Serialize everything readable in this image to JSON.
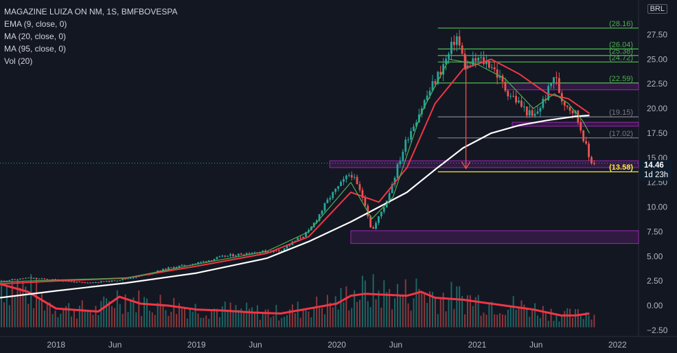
{
  "legend": {
    "title": "MAGAZINE LUIZA ON NM, 1S, BMFBOVESPA",
    "lines": [
      "EMA (9, close, 0)",
      "MA (20, close, 0)",
      "MA (95, close, 0)",
      "Vol (20)"
    ]
  },
  "currency": "BRL",
  "last_price": {
    "value": "14.46",
    "countdown": "1d 23h"
  },
  "colors": {
    "background": "#131722",
    "up": "#26a69a",
    "down": "#ef5350",
    "ema9": "#4caf50",
    "ma20": "#f23645",
    "ma95": "#ffffff",
    "vol_ma": "#f23645",
    "zone": "#9c27b0",
    "level_green": "#4caf50",
    "level_gray": "#787b86",
    "level_yellow": "#ffeb3b"
  },
  "chart_data": {
    "type": "line",
    "y_ticks": [
      "27.50",
      "25.00",
      "22.50",
      "20.00",
      "17.50",
      "15.00",
      "12.50",
      "10.00",
      "7.50",
      "5.00",
      "2.50",
      "0.00",
      "−2.50"
    ],
    "ylim": [
      -2.5,
      29.5
    ],
    "x_ticks": [
      "2018",
      "Jun",
      "2019",
      "Jun",
      "2020",
      "Jun",
      "2021",
      "Jun",
      "2022"
    ],
    "price_path": [
      [
        2017.6,
        2.5
      ],
      [
        2017.8,
        2.8
      ],
      [
        2018.0,
        2.6
      ],
      [
        2018.2,
        2.3
      ],
      [
        2018.4,
        2.5
      ],
      [
        2018.6,
        3.0
      ],
      [
        2018.8,
        3.8
      ],
      [
        2019.0,
        4.3
      ],
      [
        2019.2,
        5.0
      ],
      [
        2019.4,
        5.4
      ],
      [
        2019.6,
        5.6
      ],
      [
        2019.8,
        7.5
      ],
      [
        2019.95,
        11.0
      ],
      [
        2020.1,
        13.5
      ],
      [
        2020.2,
        10.5
      ],
      [
        2020.25,
        7.5
      ],
      [
        2020.35,
        10.5
      ],
      [
        2020.5,
        17.0
      ],
      [
        2020.65,
        21.5
      ],
      [
        2020.8,
        25.5
      ],
      [
        2020.85,
        27.5
      ],
      [
        2020.92,
        24.0
      ],
      [
        2021.0,
        25.0
      ],
      [
        2021.1,
        24.5
      ],
      [
        2021.2,
        22.0
      ],
      [
        2021.3,
        20.5
      ],
      [
        2021.4,
        19.0
      ],
      [
        2021.5,
        21.5
      ],
      [
        2021.55,
        23.5
      ],
      [
        2021.6,
        21.0
      ],
      [
        2021.7,
        19.5
      ],
      [
        2021.75,
        17.5
      ],
      [
        2021.8,
        14.8
      ],
      [
        2021.84,
        14.46
      ]
    ],
    "ema9": [
      [
        2017.6,
        2.4
      ],
      [
        2018.0,
        2.6
      ],
      [
        2018.5,
        2.8
      ],
      [
        2019.0,
        4.2
      ],
      [
        2019.5,
        5.5
      ],
      [
        2019.8,
        7.5
      ],
      [
        2020.1,
        12.5
      ],
      [
        2020.25,
        8.8
      ],
      [
        2020.4,
        11.0
      ],
      [
        2020.6,
        19.5
      ],
      [
        2020.8,
        25.0
      ],
      [
        2021.0,
        24.5
      ],
      [
        2021.2,
        23.0
      ],
      [
        2021.4,
        20.0
      ],
      [
        2021.55,
        21.5
      ],
      [
        2021.65,
        20.5
      ],
      [
        2021.75,
        18.8
      ],
      [
        2021.8,
        17.5
      ]
    ],
    "ma20": [
      [
        2017.6,
        2.2
      ],
      [
        2018.0,
        2.5
      ],
      [
        2018.5,
        2.8
      ],
      [
        2019.0,
        4.0
      ],
      [
        2019.5,
        5.3
      ],
      [
        2019.8,
        7.0
      ],
      [
        2020.1,
        11.5
      ],
      [
        2020.3,
        10.5
      ],
      [
        2020.5,
        14.0
      ],
      [
        2020.7,
        20.5
      ],
      [
        2020.9,
        24.0
      ],
      [
        2021.1,
        25.0
      ],
      [
        2021.3,
        23.5
      ],
      [
        2021.5,
        21.5
      ],
      [
        2021.65,
        21.0
      ],
      [
        2021.8,
        19.5
      ]
    ],
    "ma95": [
      [
        2017.6,
        0.8
      ],
      [
        2018.0,
        1.5
      ],
      [
        2018.5,
        2.3
      ],
      [
        2019.0,
        3.3
      ],
      [
        2019.5,
        4.8
      ],
      [
        2019.8,
        6.5
      ],
      [
        2020.1,
        8.5
      ],
      [
        2020.3,
        10.0
      ],
      [
        2020.5,
        11.5
      ],
      [
        2020.7,
        13.8
      ],
      [
        2020.9,
        16.0
      ],
      [
        2021.1,
        17.5
      ],
      [
        2021.3,
        18.3
      ],
      [
        2021.5,
        18.8
      ],
      [
        2021.7,
        19.2
      ],
      [
        2021.8,
        19.3
      ]
    ],
    "vol_ma": [
      [
        2017.6,
        2.2
      ],
      [
        2017.8,
        1.4
      ],
      [
        2018.0,
        -0.3
      ],
      [
        2018.3,
        -0.6
      ],
      [
        2018.45,
        0.9
      ],
      [
        2018.6,
        0.2
      ],
      [
        2018.8,
        0.0
      ],
      [
        2019.0,
        -0.4
      ],
      [
        2019.2,
        -0.5
      ],
      [
        2019.4,
        -0.7
      ],
      [
        2019.6,
        -0.8
      ],
      [
        2019.8,
        -0.3
      ],
      [
        2020.0,
        0.2
      ],
      [
        2020.1,
        1.0
      ],
      [
        2020.2,
        1.2
      ],
      [
        2020.35,
        1.1
      ],
      [
        2020.5,
        1.0
      ],
      [
        2020.6,
        1.4
      ],
      [
        2020.7,
        0.8
      ],
      [
        2020.9,
        0.6
      ],
      [
        2021.0,
        0.4
      ],
      [
        2021.2,
        0.0
      ],
      [
        2021.4,
        -0.4
      ],
      [
        2021.6,
        -1.0
      ],
      [
        2021.7,
        -1.0
      ],
      [
        2021.8,
        -0.8
      ]
    ],
    "levels": [
      {
        "value": 28.16,
        "label": "(28.16)",
        "color": "green"
      },
      {
        "value": 26.04,
        "label": "(26.04)",
        "color": "green"
      },
      {
        "value": 25.38,
        "label": "(25.38)",
        "color": "green"
      },
      {
        "value": 24.72,
        "label": "(24.72)",
        "color": "green"
      },
      {
        "value": 22.59,
        "label": "(22.59)",
        "color": "green"
      },
      {
        "value": 19.15,
        "label": "(19.15)",
        "color": "gray"
      },
      {
        "value": 17.02,
        "label": "(17.02)",
        "color": "gray"
      },
      {
        "value": 13.58,
        "label": "(13.58)",
        "color": "yellow"
      }
    ],
    "zones": [
      {
        "x0": 2021.2,
        "x1": 2022.15,
        "y0": 21.9,
        "y1": 22.6
      },
      {
        "x0": 2021.25,
        "x1": 2022.15,
        "y0": 18.2,
        "y1": 18.6
      },
      {
        "x0": 2019.95,
        "x1": 2022.15,
        "y0": 14.0,
        "y1": 14.7
      },
      {
        "x0": 2020.1,
        "x1": 2022.15,
        "y0": 6.3,
        "y1": 7.6
      }
    ]
  }
}
